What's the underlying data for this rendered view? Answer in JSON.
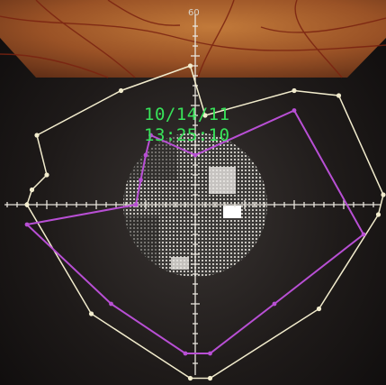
{
  "capture": {
    "date": "10/14/11",
    "time": "13:25:10"
  },
  "axis": {
    "max_label": "60"
  },
  "fields": {
    "outer": {
      "color": "#f2eccd",
      "points": [
        [
          -34,
          0
        ],
        [
          -33,
          3
        ],
        [
          -30,
          6
        ],
        [
          -32,
          14
        ],
        [
          -15,
          23
        ],
        [
          -1,
          28
        ],
        [
          2,
          18
        ],
        [
          20,
          23
        ],
        [
          29,
          22
        ],
        [
          38,
          2
        ],
        [
          37,
          -2
        ],
        [
          25,
          -21
        ],
        [
          3,
          -35
        ],
        [
          -1,
          -35
        ],
        [
          -21,
          -22
        ]
      ]
    },
    "inner": {
      "color": "#b84fd4",
      "points": [
        [
          -34,
          -4
        ],
        [
          -12,
          0
        ],
        [
          -11,
          5
        ],
        [
          -10,
          10
        ],
        [
          -9,
          14
        ],
        [
          0,
          10
        ],
        [
          20,
          19
        ],
        [
          34,
          -6
        ],
        [
          16,
          -20
        ],
        [
          3,
          -30
        ],
        [
          -2,
          -30
        ],
        [
          -17,
          -20
        ]
      ]
    }
  },
  "colors": {
    "timestamp": "#38e35a",
    "axis": "#e8e4dc"
  }
}
